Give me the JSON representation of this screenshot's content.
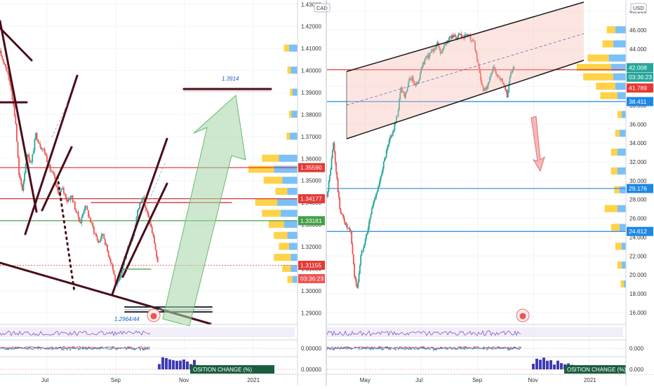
{
  "chart_data": [
    {
      "type": "candlestick",
      "currency": "CAD",
      "price_axis": {
        "min": 1.285,
        "max": 1.432,
        "ticks": [
          "1.43000",
          "1.42000",
          "1.41000",
          "1.40000",
          "1.39000",
          "1.38000",
          "1.37000",
          "1.36000",
          "1.35000",
          "1.34000",
          "1.33000",
          "1.32000",
          "1.31000",
          "1.30000",
          "1.29000"
        ]
      },
      "time_axis": {
        "labels": [
          "Jul",
          "Sep",
          "Nov",
          "2021"
        ],
        "range": [
          "2020-05-20",
          "2021-02-10"
        ]
      },
      "price_tags": [
        {
          "value": "1.35590",
          "price": 1.3559,
          "color": "#e53935"
        },
        {
          "value": "1.34177",
          "price": 1.34177,
          "color": "#e53935"
        },
        {
          "value": "1.33181",
          "price": 1.33181,
          "color": "#43a047"
        },
        {
          "value": "1.31155",
          "price": 1.31155,
          "color": "#e53935"
        },
        {
          "value": "03:36:23",
          "price": 1.3055,
          "color": "#ef5350"
        }
      ],
      "horizontal_levels": [
        {
          "price": 1.3559,
          "color": "#d32f2f"
        },
        {
          "price": 1.34177,
          "color": "#c62828"
        },
        {
          "price": 1.33181,
          "color": "#43a047"
        },
        {
          "price": 1.31155,
          "color": "#e57373",
          "dashed": true
        }
      ],
      "annotations": [
        {
          "text": "1.3914",
          "price": 1.3914,
          "color": "#1565c0"
        },
        {
          "text": "1.2964/44",
          "price": 1.2964,
          "color": "#1565c0"
        }
      ],
      "price_path": [
        [
          "2020-05-20",
          1.408
        ],
        [
          "2020-05-25",
          1.402
        ],
        [
          "2020-05-30",
          1.392
        ],
        [
          "2020-06-03",
          1.376
        ],
        [
          "2020-06-06",
          1.352
        ],
        [
          "2020-06-09",
          1.346
        ],
        [
          "2020-06-13",
          1.362
        ],
        [
          "2020-06-17",
          1.358
        ],
        [
          "2020-06-21",
          1.371
        ],
        [
          "2020-06-25",
          1.366
        ],
        [
          "2020-06-29",
          1.363
        ],
        [
          "2020-07-03",
          1.356
        ],
        [
          "2020-07-07",
          1.352
        ],
        [
          "2020-07-11",
          1.344
        ],
        [
          "2020-07-15",
          1.346
        ],
        [
          "2020-07-19",
          1.341
        ],
        [
          "2020-07-23",
          1.343
        ],
        [
          "2020-07-27",
          1.336
        ],
        [
          "2020-07-31",
          1.331
        ],
        [
          "2020-08-04",
          1.339
        ],
        [
          "2020-08-08",
          1.333
        ],
        [
          "2020-08-12",
          1.327
        ],
        [
          "2020-08-16",
          1.322
        ],
        [
          "2020-08-20",
          1.326
        ],
        [
          "2020-08-24",
          1.318
        ],
        [
          "2020-08-28",
          1.312
        ],
        [
          "2020-09-01",
          1.302
        ],
        [
          "2020-09-04",
          1.305
        ],
        [
          "2020-09-08",
          1.314
        ],
        [
          "2020-09-12",
          1.321
        ],
        [
          "2020-09-16",
          1.325
        ],
        [
          "2020-09-20",
          1.336
        ],
        [
          "2020-09-24",
          1.343
        ],
        [
          "2020-09-28",
          1.336
        ],
        [
          "2020-10-01",
          1.331
        ],
        [
          "2020-10-05",
          1.322
        ],
        [
          "2020-10-08",
          1.312
        ]
      ],
      "volume_profile": [
        {
          "price": 1.41,
          "buy": 6,
          "sell": 10
        },
        {
          "price": 1.4,
          "buy": 4,
          "sell": 8
        },
        {
          "price": 1.39,
          "buy": 3,
          "sell": 6
        },
        {
          "price": 1.38,
          "buy": 3,
          "sell": 7
        },
        {
          "price": 1.37,
          "buy": 4,
          "sell": 9
        },
        {
          "price": 1.36,
          "buy": 20,
          "sell": 22
        },
        {
          "price": 1.355,
          "buy": 30,
          "sell": 28
        },
        {
          "price": 1.35,
          "buy": 22,
          "sell": 18
        },
        {
          "price": 1.345,
          "buy": 14,
          "sell": 12
        },
        {
          "price": 1.34,
          "buy": 26,
          "sell": 24
        },
        {
          "price": 1.335,
          "buy": 22,
          "sell": 20
        },
        {
          "price": 1.33,
          "buy": 18,
          "sell": 16
        },
        {
          "price": 1.325,
          "buy": 16,
          "sell": 12
        },
        {
          "price": 1.32,
          "buy": 12,
          "sell": 10
        },
        {
          "price": 1.315,
          "buy": 20,
          "sell": 8
        },
        {
          "price": 1.31,
          "buy": 10,
          "sell": 8
        },
        {
          "price": 1.305,
          "buy": 6,
          "sell": 6
        }
      ],
      "oscillator": {
        "axis_label": "0.00000"
      },
      "position_change": {
        "label": "OSITION CHANGE (%)",
        "axis_label": "0.00000"
      }
    },
    {
      "type": "candlestick",
      "currency": "USD",
      "price_axis": {
        "min": 14.8,
        "max": 49.2,
        "ticks": [
          "48.000",
          "46.000",
          "44.000",
          "42.000",
          "40.000",
          "38.000",
          "36.000",
          "34.000",
          "32.000",
          "30.000",
          "28.000",
          "26.000",
          "24.000",
          "22.000",
          "20.000",
          "18.000",
          "16.000"
        ]
      },
      "time_axis": {
        "labels": [
          "May",
          "Jul",
          "Sep",
          "Nov",
          "2021"
        ],
        "range": [
          "2020-03-20",
          "2021-02-10"
        ]
      },
      "price_tags": [
        {
          "value": "42.008",
          "price": 42.008,
          "color": "#26a69a"
        },
        {
          "value": "03:36:23",
          "price": 41.0,
          "color": "#26a69a"
        },
        {
          "value": "41.789",
          "price": 39.85,
          "color": "#e53935"
        },
        {
          "value": "38.411",
          "price": 38.411,
          "color": "#1e88e5"
        },
        {
          "value": "29.176",
          "price": 29.176,
          "color": "#1e88e5"
        },
        {
          "value": "24.612",
          "price": 24.612,
          "color": "#1e88e5"
        }
      ],
      "horizontal_levels": [
        {
          "price": 41.789,
          "color": "#e53935"
        },
        {
          "price": 38.411,
          "color": "#1e88e5"
        },
        {
          "price": 29.176,
          "color": "#1e88e5"
        },
        {
          "price": 24.612,
          "color": "#1e88e5"
        }
      ],
      "price_path": [
        [
          "2020-03-20",
          28.5
        ],
        [
          "2020-03-23",
          30.5
        ],
        [
          "2020-03-27",
          34.0
        ],
        [
          "2020-03-30",
          31.0
        ],
        [
          "2020-04-03",
          27.0
        ],
        [
          "2020-04-07",
          26.0
        ],
        [
          "2020-04-11",
          25.0
        ],
        [
          "2020-04-15",
          24.5
        ],
        [
          "2020-04-19",
          20.0
        ],
        [
          "2020-04-22",
          18.5
        ],
        [
          "2020-04-26",
          22.0
        ],
        [
          "2020-04-30",
          23.5
        ],
        [
          "2020-05-04",
          25.0
        ],
        [
          "2020-05-08",
          27.0
        ],
        [
          "2020-05-12",
          28.5
        ],
        [
          "2020-05-16",
          29.5
        ],
        [
          "2020-05-20",
          31.5
        ],
        [
          "2020-05-24",
          33.0
        ],
        [
          "2020-05-28",
          34.5
        ],
        [
          "2020-06-01",
          35.5
        ],
        [
          "2020-06-05",
          37.0
        ],
        [
          "2020-06-09",
          40.0
        ],
        [
          "2020-06-13",
          39.0
        ],
        [
          "2020-06-17",
          40.5
        ],
        [
          "2020-06-21",
          41.0
        ],
        [
          "2020-06-25",
          40.0
        ],
        [
          "2020-06-29",
          41.0
        ],
        [
          "2020-07-03",
          42.5
        ],
        [
          "2020-07-07",
          43.0
        ],
        [
          "2020-07-11",
          43.5
        ],
        [
          "2020-07-15",
          44.0
        ],
        [
          "2020-07-19",
          44.5
        ],
        [
          "2020-07-23",
          43.5
        ],
        [
          "2020-07-27",
          44.5
        ],
        [
          "2020-07-31",
          45.0
        ],
        [
          "2020-08-04",
          45.5
        ],
        [
          "2020-08-08",
          45.0
        ],
        [
          "2020-08-12",
          45.5
        ],
        [
          "2020-08-16",
          45.0
        ],
        [
          "2020-08-20",
          45.5
        ],
        [
          "2020-08-24",
          45.0
        ],
        [
          "2020-08-28",
          44.5
        ],
        [
          "2020-09-01",
          42.5
        ],
        [
          "2020-09-05",
          40.0
        ],
        [
          "2020-09-09",
          39.5
        ],
        [
          "2020-09-13",
          40.5
        ],
        [
          "2020-09-17",
          42.0
        ],
        [
          "2020-09-21",
          41.5
        ],
        [
          "2020-09-25",
          41.0
        ],
        [
          "2020-09-29",
          40.5
        ],
        [
          "2020-10-03",
          39.0
        ],
        [
          "2020-10-07",
          41.5
        ],
        [
          "2020-10-11",
          42.0
        ]
      ],
      "volume_profile": [
        {
          "price": 46.0,
          "buy": 8,
          "sell": 10
        },
        {
          "price": 44.5,
          "buy": 10,
          "sell": 12
        },
        {
          "price": 43.0,
          "buy": 20,
          "sell": 16
        },
        {
          "price": 42.0,
          "buy": 32,
          "sell": 14
        },
        {
          "price": 41.0,
          "buy": 28,
          "sell": 12
        },
        {
          "price": 40.0,
          "buy": 18,
          "sell": 10
        },
        {
          "price": 39.0,
          "buy": 16,
          "sell": 8
        },
        {
          "price": 37.0,
          "buy": 4,
          "sell": 4
        },
        {
          "price": 35.0,
          "buy": 4,
          "sell": 6
        },
        {
          "price": 33.0,
          "buy": 6,
          "sell": 8
        },
        {
          "price": 31.0,
          "buy": 6,
          "sell": 8
        },
        {
          "price": 29.0,
          "buy": 5,
          "sell": 6
        },
        {
          "price": 27.0,
          "buy": 12,
          "sell": 8
        },
        {
          "price": 25.0,
          "buy": 8,
          "sell": 6
        },
        {
          "price": 23.0,
          "buy": 6,
          "sell": 4
        },
        {
          "price": 21.0,
          "buy": 4,
          "sell": 4
        },
        {
          "price": 19.0,
          "buy": 3,
          "sell": 2
        }
      ],
      "oscillator": {
        "axis_label": "0.000"
      },
      "position_change": {
        "label": "OSITION CHANGE (%)",
        "axis_label": "0.000"
      }
    }
  ]
}
